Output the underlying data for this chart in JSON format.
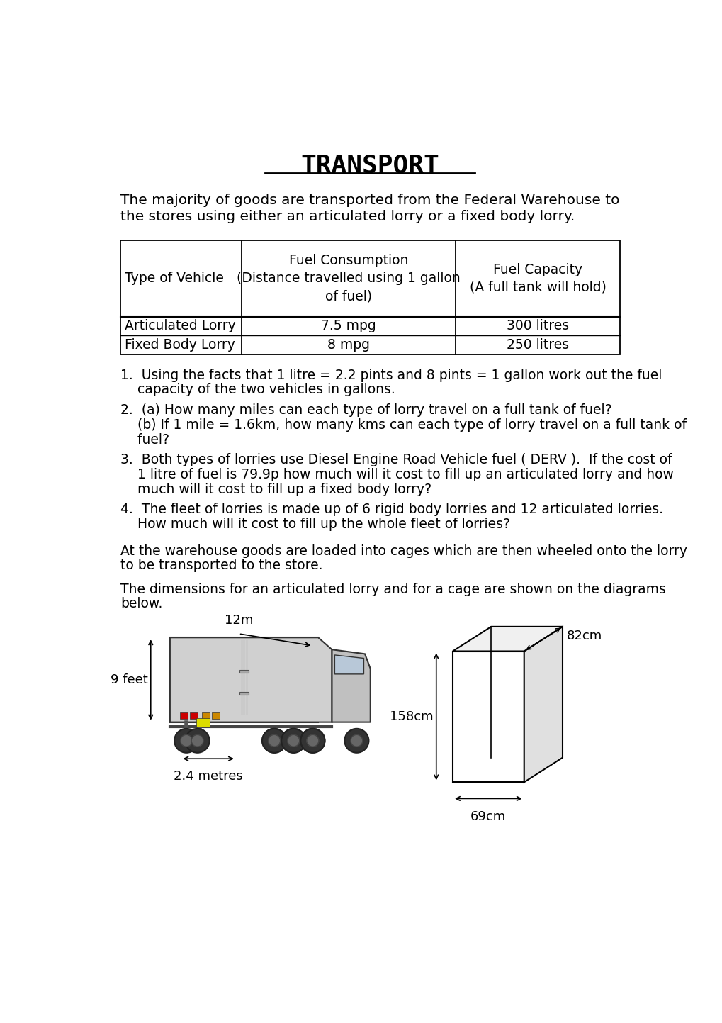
{
  "title": "TRANSPORT",
  "intro_text_line1": "The majority of goods are transported from the Federal Warehouse to",
  "intro_text_line2": "the stores using either an articulated lorry or a fixed body lorry.",
  "table_header_col1": "Type of Vehicle",
  "table_header_col2_line1": "Fuel Consumption",
  "table_header_col2_line2": "(Distance travelled using 1 gallon",
  "table_header_col2_line3": "of fuel)",
  "table_header_col3_line1": "Fuel Capacity",
  "table_header_col3_line2": "(A full tank will hold)",
  "table_rows": [
    [
      "Articulated Lorry",
      "7.5 mpg",
      "300 litres"
    ],
    [
      "Fixed Body Lorry",
      "8 mpg",
      "250 litres"
    ]
  ],
  "q1_line1": "1.  Using the facts that 1 litre = 2.2 pints and 8 pints = 1 gallon work out the fuel",
  "q1_line2": "    capacity of the two vehicles in gallons.",
  "q2_line1": "2.  (a) How many miles can each type of lorry travel on a full tank of fuel?",
  "q2_line2": "    (b) If 1 mile = 1.6km, how many kms can each type of lorry travel on a full tank of",
  "q2_line3": "    fuel?",
  "q3_line1": "3.  Both types of lorries use Diesel Engine Road Vehicle fuel ( DERV ).  If the cost of",
  "q3_line2": "    1 litre of fuel is 79.9p how much will it cost to fill up an articulated lorry and how",
  "q3_line3": "    much will it cost to fill up a fixed body lorry?",
  "q4_line1": "4.  The fleet of lorries is made up of 6 rigid body lorries and 12 articulated lorries.",
  "q4_line2": "    How much will it cost to fill up the whole fleet of lorries?",
  "para1_line1": "At the warehouse goods are loaded into cages which are then wheeled onto the lorry",
  "para1_line2": "to be transported to the store.",
  "para2_line1": "The dimensions for an articulated lorry and for a cage are shown on the diagrams",
  "para2_line2": "below.",
  "lorry_label_top": "12m",
  "lorry_label_left": "9 feet",
  "lorry_label_bottom": "2.4 metres",
  "cage_label_left": "158cm",
  "cage_label_right": "82cm",
  "cage_label_bottom": "69cm",
  "bg_color": "#ffffff",
  "text_color": "#000000"
}
